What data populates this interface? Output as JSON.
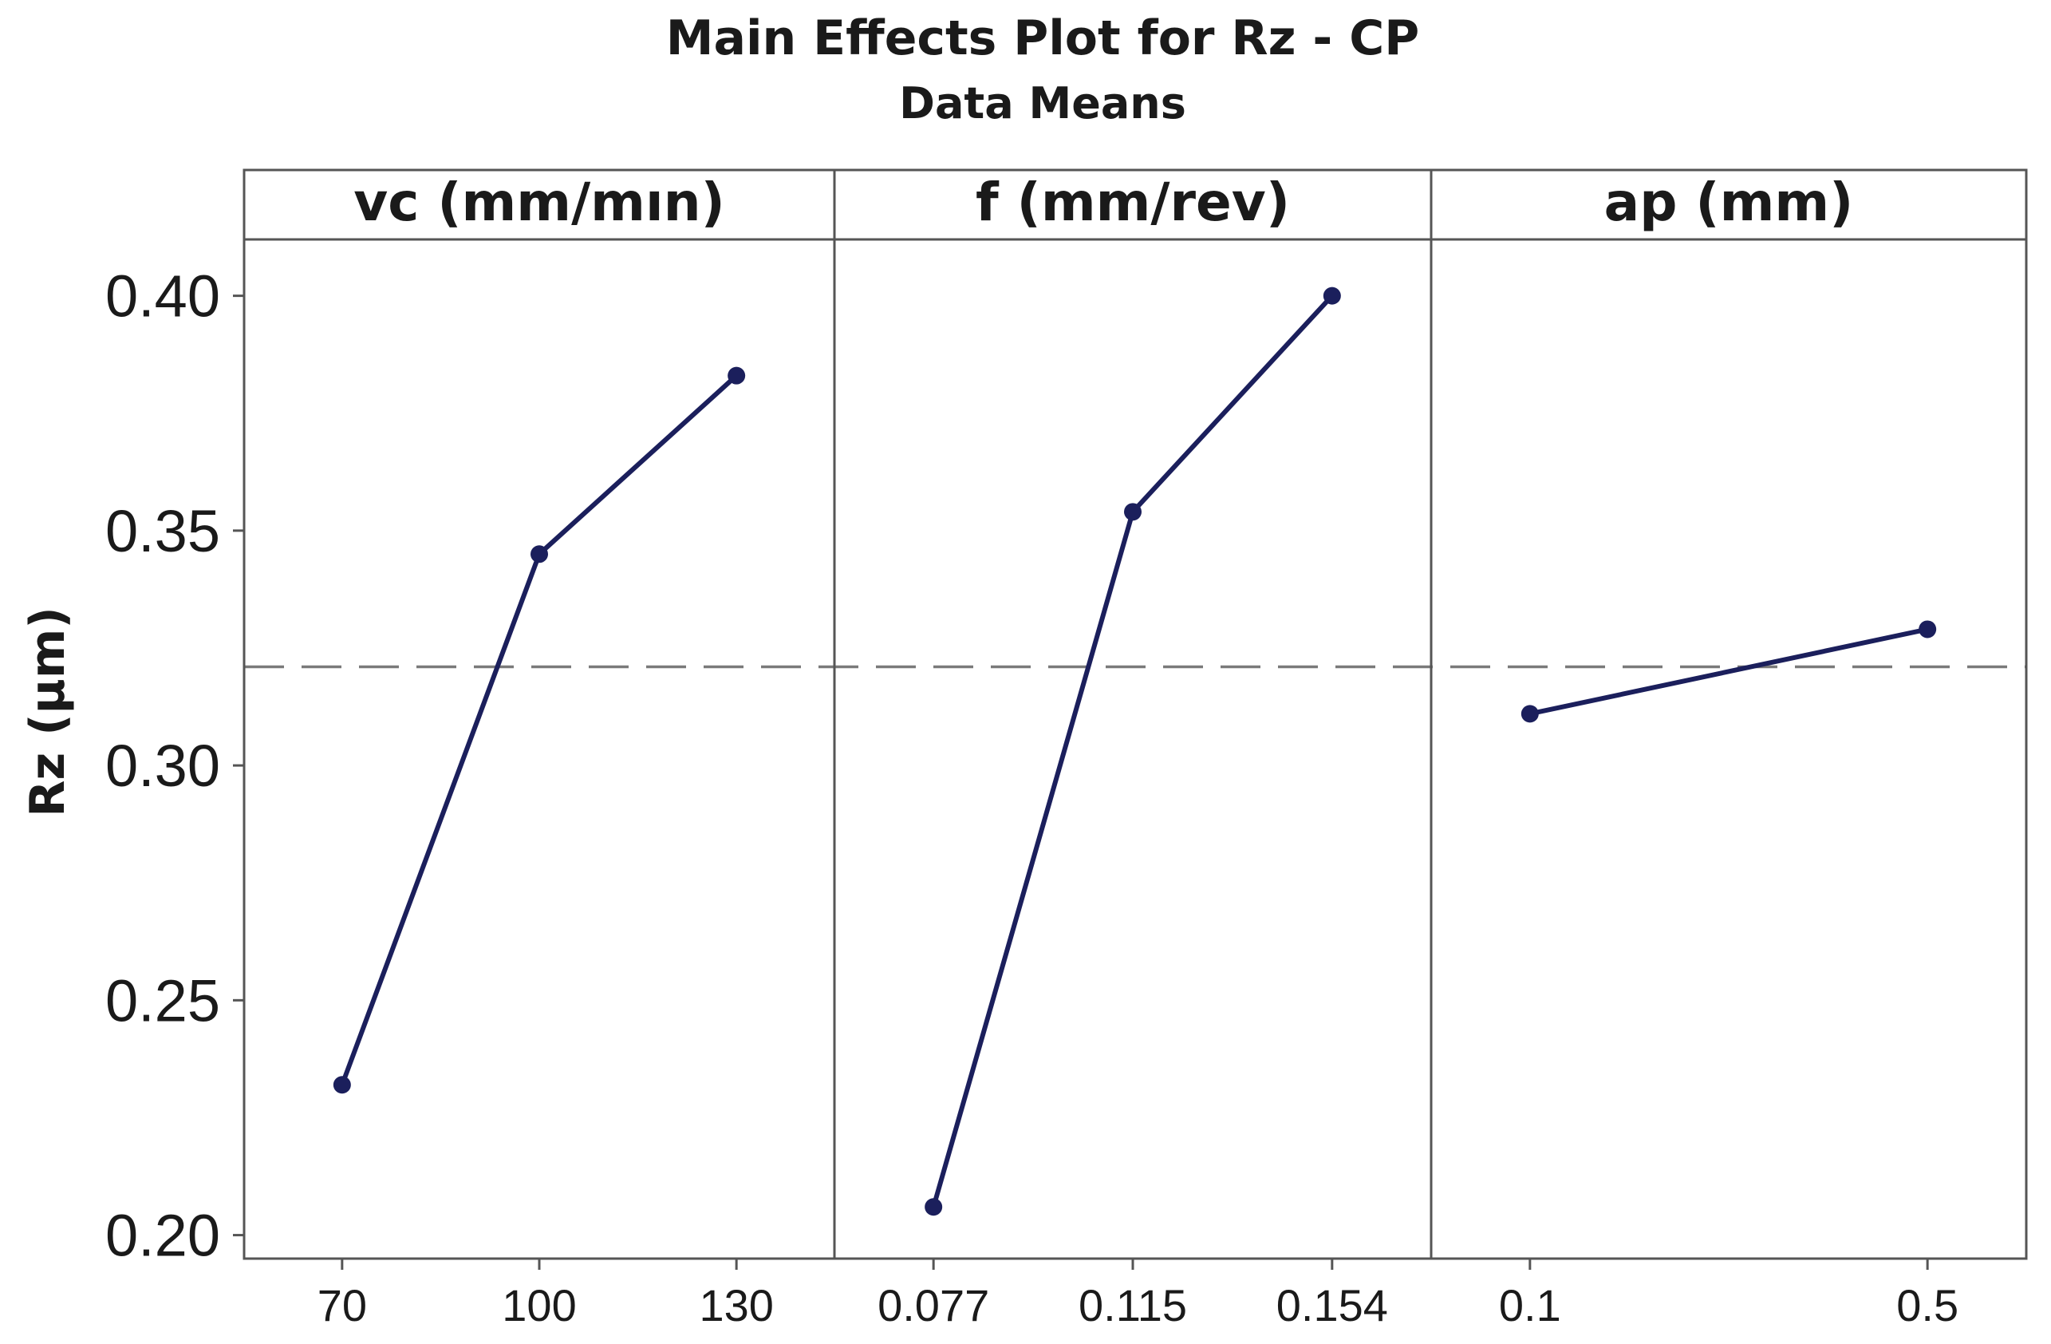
{
  "chart_data": {
    "type": "line",
    "title": "Main Effects Plot for Rz - CP",
    "subtitle": "Data Means",
    "ylabel": "Rz (µm)",
    "ylim": [
      0.195,
      0.412
    ],
    "yticks": [
      "0.20",
      "0.25",
      "0.30",
      "0.35",
      "0.40"
    ],
    "overall_mean": 0.321,
    "series_color": "#1b1f5c",
    "panels": [
      {
        "label": "vc (mm/mın)",
        "categories": [
          "70",
          "100",
          "130"
        ],
        "values": [
          0.232,
          0.345,
          0.383
        ]
      },
      {
        "label": "f (mm/rev)",
        "categories": [
          "0.077",
          "0.115",
          "0.154"
        ],
        "values": [
          0.206,
          0.354,
          0.4
        ]
      },
      {
        "label": "ap (mm)",
        "categories": [
          "0.1",
          "0.5"
        ],
        "values": [
          0.311,
          0.329
        ]
      }
    ]
  }
}
